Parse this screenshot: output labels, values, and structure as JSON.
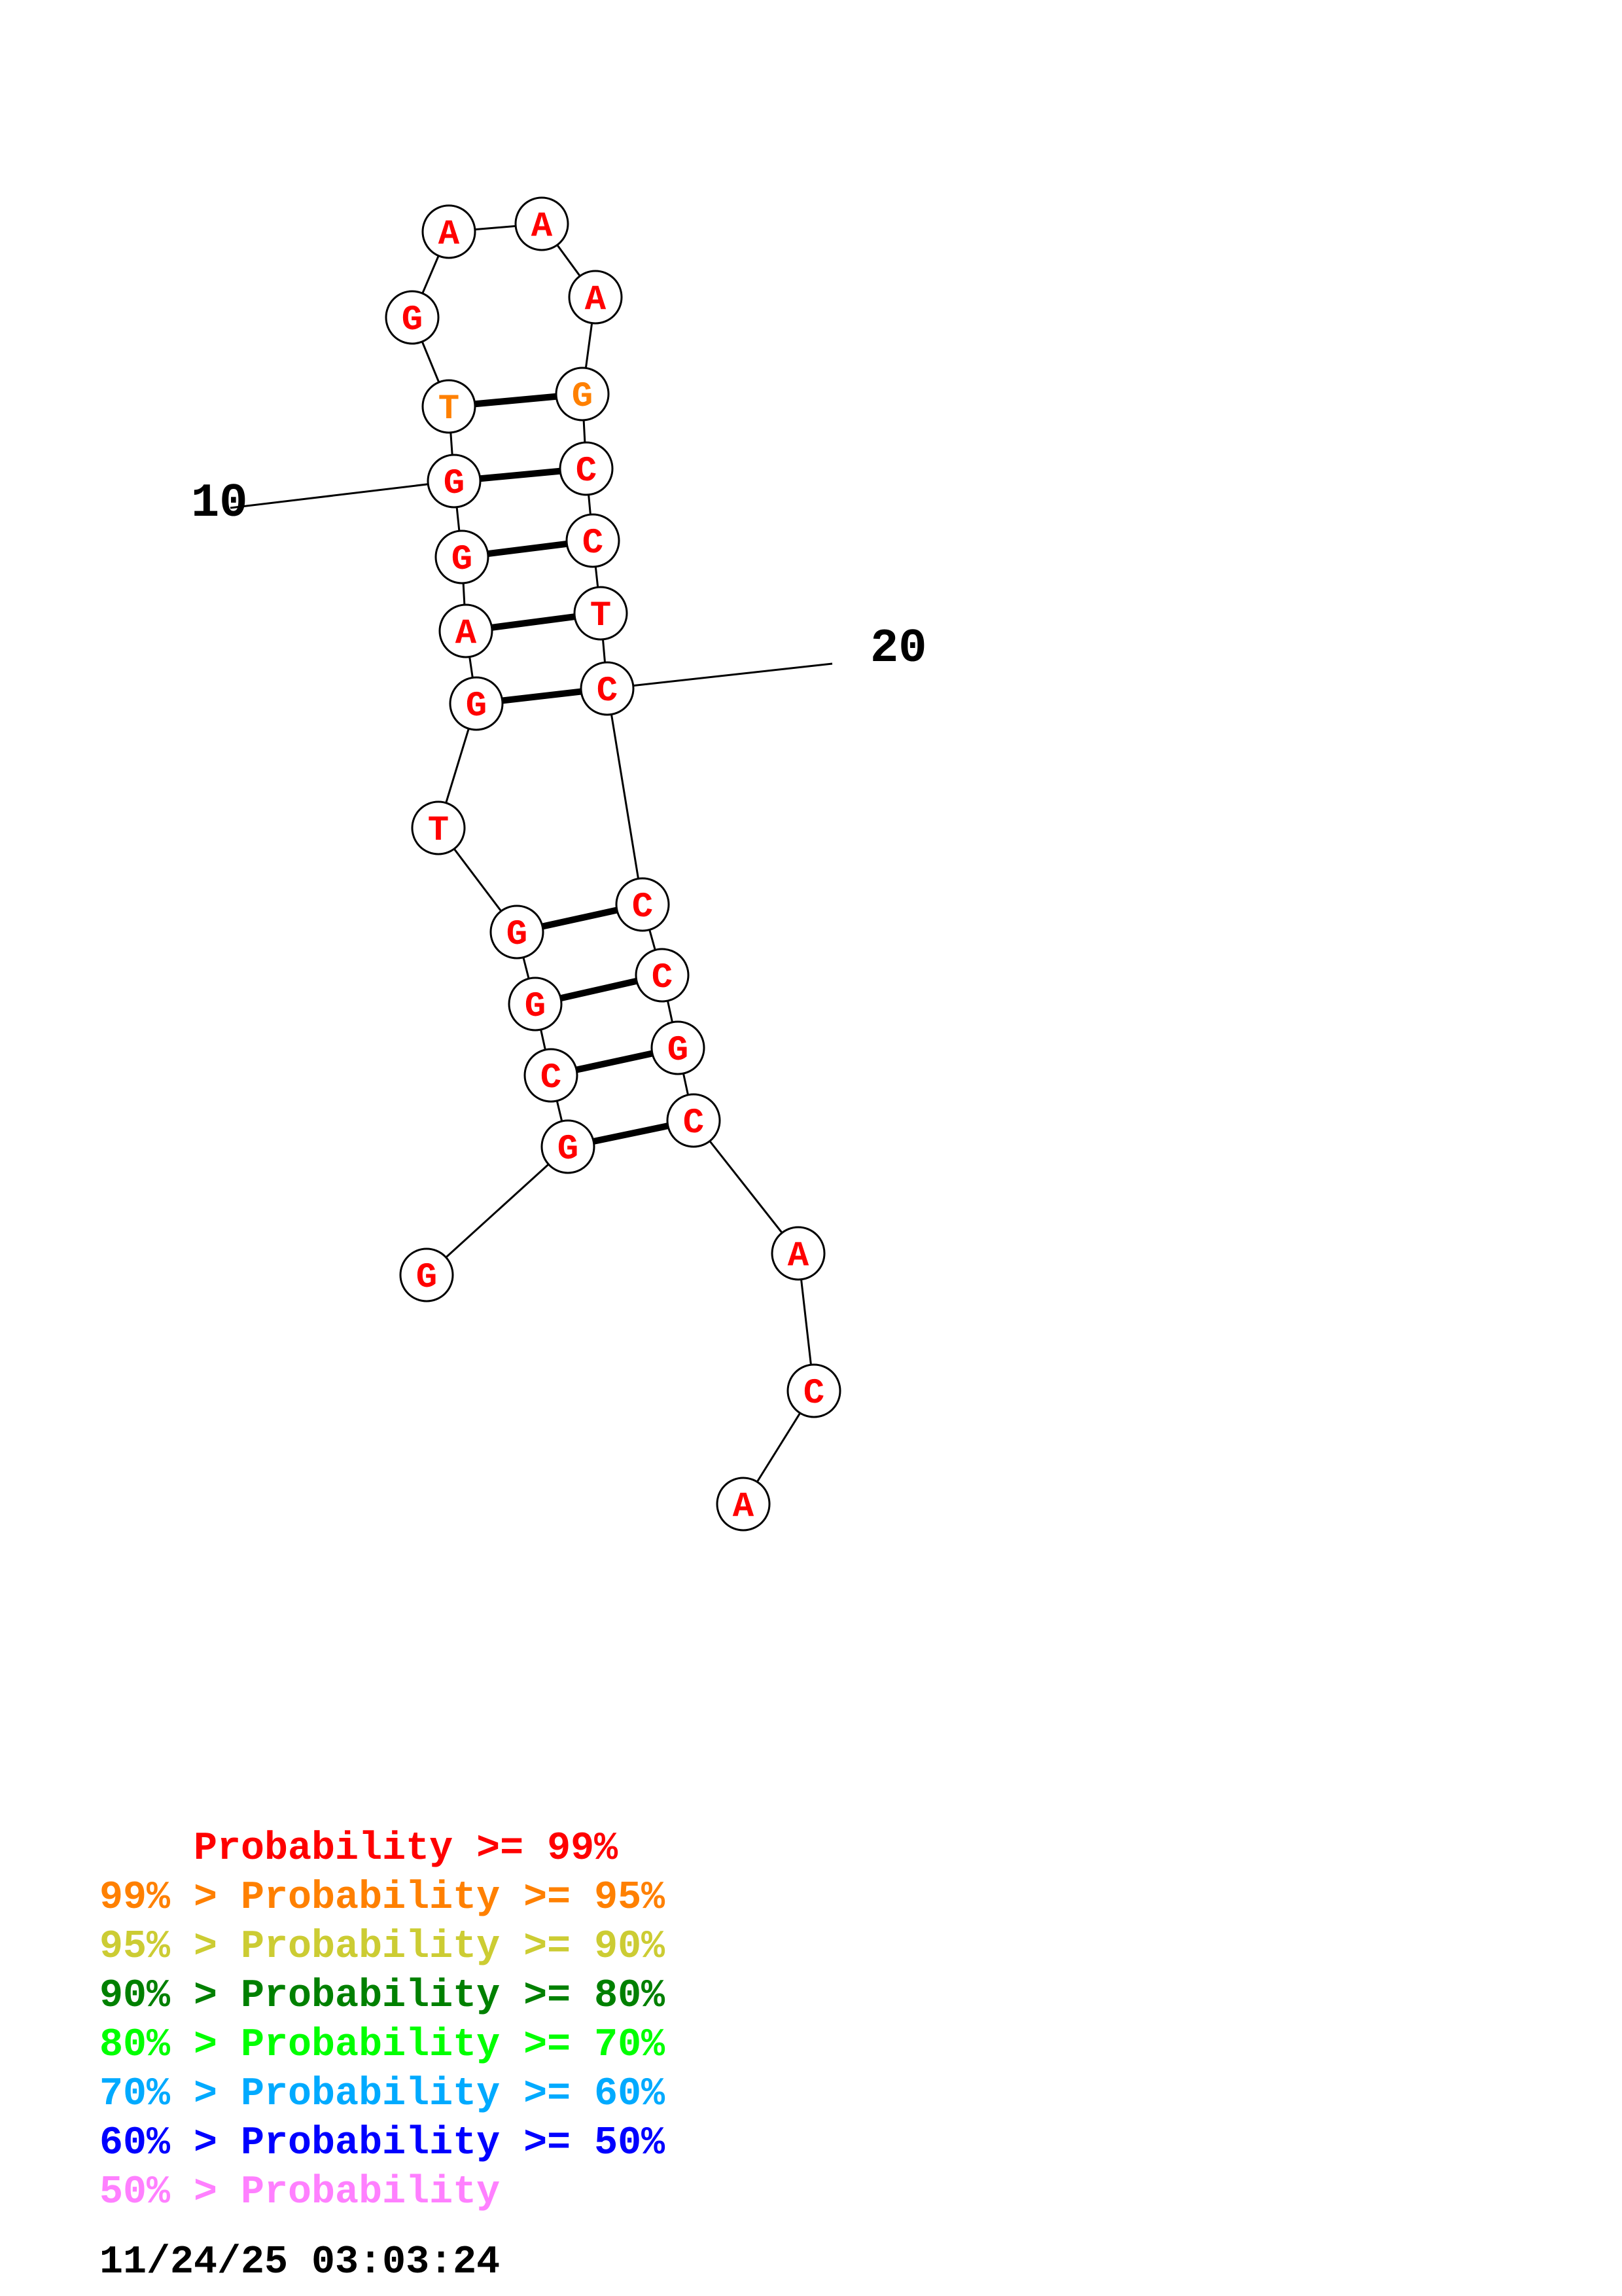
{
  "structure": {
    "nucleotides": [
      {
        "index": 1,
        "base": "G",
        "color": "#ff0000"
      },
      {
        "index": 2,
        "base": "G",
        "color": "#ff0000"
      },
      {
        "index": 3,
        "base": "C",
        "color": "#ff0000"
      },
      {
        "index": 4,
        "base": "G",
        "color": "#ff0000"
      },
      {
        "index": 5,
        "base": "G",
        "color": "#ff0000"
      },
      {
        "index": 6,
        "base": "T",
        "color": "#ff0000"
      },
      {
        "index": 7,
        "base": "G",
        "color": "#ff0000"
      },
      {
        "index": 8,
        "base": "A",
        "color": "#ff0000"
      },
      {
        "index": 9,
        "base": "G",
        "color": "#ff0000"
      },
      {
        "index": 10,
        "base": "G",
        "color": "#ff0000"
      },
      {
        "index": 11,
        "base": "T",
        "color": "#ff8000"
      },
      {
        "index": 12,
        "base": "G",
        "color": "#ff0000"
      },
      {
        "index": 13,
        "base": "A",
        "color": "#ff0000"
      },
      {
        "index": 14,
        "base": "A",
        "color": "#ff0000"
      },
      {
        "index": 15,
        "base": "A",
        "color": "#ff0000"
      },
      {
        "index": 16,
        "base": "G",
        "color": "#ff8000"
      },
      {
        "index": 17,
        "base": "C",
        "color": "#ff0000"
      },
      {
        "index": 18,
        "base": "C",
        "color": "#ff0000"
      },
      {
        "index": 19,
        "base": "T",
        "color": "#ff0000"
      },
      {
        "index": 20,
        "base": "C",
        "color": "#ff0000"
      },
      {
        "index": 21,
        "base": "C",
        "color": "#ff0000"
      },
      {
        "index": 22,
        "base": "C",
        "color": "#ff0000"
      },
      {
        "index": 23,
        "base": "G",
        "color": "#ff0000"
      },
      {
        "index": 24,
        "base": "C",
        "color": "#ff0000"
      },
      {
        "index": 25,
        "base": "A",
        "color": "#ff0000"
      },
      {
        "index": 26,
        "base": "C",
        "color": "#ff0000"
      },
      {
        "index": 27,
        "base": "A",
        "color": "#ff0000"
      }
    ],
    "pairs": [
      [
        2,
        24
      ],
      [
        3,
        23
      ],
      [
        4,
        22
      ],
      [
        5,
        21
      ],
      [
        7,
        20
      ],
      [
        8,
        19
      ],
      [
        9,
        18
      ],
      [
        10,
        17
      ],
      [
        11,
        16
      ]
    ],
    "index_labels": [
      {
        "nucleotide": 10,
        "text": "10"
      },
      {
        "nucleotide": 20,
        "text": "20"
      }
    ]
  },
  "legend": [
    {
      "prefix": "    ",
      "text": "    Probability >= 99%",
      "color": "#ff0000"
    },
    {
      "prefix": "",
      "text": "99% > Probability >= 95%",
      "color": "#ff8000"
    },
    {
      "prefix": "",
      "text": "95% > Probability >= 90%",
      "color": "#cccc33"
    },
    {
      "prefix": "",
      "text": "90% > Probability >= 80%",
      "color": "#008000"
    },
    {
      "prefix": "",
      "text": "80% > Probability >= 70%",
      "color": "#00ff00"
    },
    {
      "prefix": "",
      "text": "70% > Probability >= 60%",
      "color": "#00aaff"
    },
    {
      "prefix": "",
      "text": "60% > Probability >= 50%",
      "color": "#0000ff"
    },
    {
      "prefix": "",
      "text": "50% > Probability",
      "color": "#ff80ff"
    }
  ],
  "timestamp": "11/24/25 03:03:24"
}
